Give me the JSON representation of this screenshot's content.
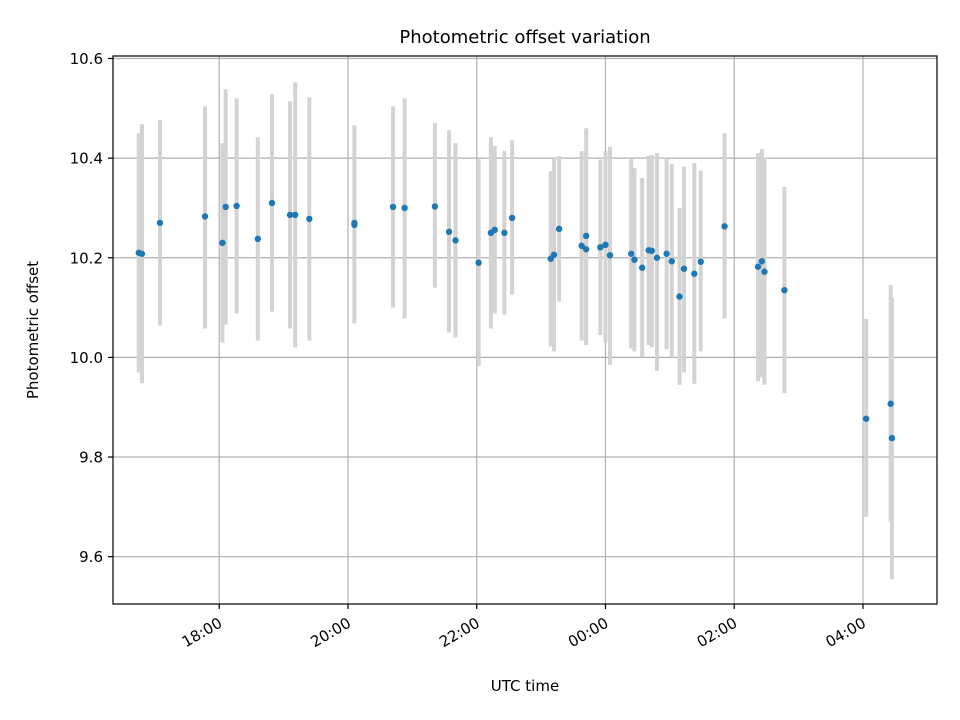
{
  "chart_data": {
    "type": "scatter",
    "title": "Photometric offset variation",
    "xlabel": "UTC time",
    "ylabel": "Photometric offset",
    "x_unit": "hours since 00:00 UTC (negative = previous day)",
    "xlim": [
      -7.65,
      5.15
    ],
    "ylim": [
      9.505,
      10.605
    ],
    "xticks": [
      {
        "value": -6,
        "label": "18:00"
      },
      {
        "value": -4,
        "label": "20:00"
      },
      {
        "value": -2,
        "label": "22:00"
      },
      {
        "value": 0,
        "label": "00:00"
      },
      {
        "value": 2,
        "label": "02:00"
      },
      {
        "value": 4,
        "label": "04:00"
      }
    ],
    "yticks": [
      {
        "value": 9.6,
        "label": "9.6"
      },
      {
        "value": 9.8,
        "label": "9.8"
      },
      {
        "value": 10.0,
        "label": "10.0"
      },
      {
        "value": 10.2,
        "label": "10.2"
      },
      {
        "value": 10.4,
        "label": "10.4"
      },
      {
        "value": 10.6,
        "label": "10.6"
      }
    ],
    "grid": true,
    "colors": {
      "marker": "#1f77b4",
      "errorbar": "#d3d3d3",
      "grid": "#b0b0b0"
    },
    "points": [
      {
        "x": -7.25,
        "y": 10.21,
        "ylow": 9.97,
        "yhigh": 10.45
      },
      {
        "x": -7.2,
        "y": 10.208,
        "ylow": 9.948,
        "yhigh": 10.468
      },
      {
        "x": -6.92,
        "y": 10.27,
        "ylow": 10.064,
        "yhigh": 10.476
      },
      {
        "x": -6.22,
        "y": 10.283,
        "ylow": 10.058,
        "yhigh": 10.504
      },
      {
        "x": -5.95,
        "y": 10.23,
        "ylow": 10.03,
        "yhigh": 10.43
      },
      {
        "x": -5.9,
        "y": 10.302,
        "ylow": 10.066,
        "yhigh": 10.538
      },
      {
        "x": -5.73,
        "y": 10.304,
        "ylow": 10.088,
        "yhigh": 10.52
      },
      {
        "x": -5.4,
        "y": 10.238,
        "ylow": 10.034,
        "yhigh": 10.442
      },
      {
        "x": -5.18,
        "y": 10.31,
        "ylow": 10.092,
        "yhigh": 10.528
      },
      {
        "x": -4.9,
        "y": 10.286,
        "ylow": 10.058,
        "yhigh": 10.514
      },
      {
        "x": -4.82,
        "y": 10.286,
        "ylow": 10.02,
        "yhigh": 10.552
      },
      {
        "x": -4.6,
        "y": 10.278,
        "ylow": 10.034,
        "yhigh": 10.522
      },
      {
        "x": -3.9,
        "y": 10.27,
        "ylow": 10.07,
        "yhigh": 10.466
      },
      {
        "x": -3.9,
        "y": 10.266,
        "ylow": 10.068,
        "yhigh": 10.464
      },
      {
        "x": -3.3,
        "y": 10.302,
        "ylow": 10.1,
        "yhigh": 10.504
      },
      {
        "x": -3.12,
        "y": 10.3,
        "ylow": 10.078,
        "yhigh": 10.52
      },
      {
        "x": -2.65,
        "y": 10.303,
        "ylow": 10.14,
        "yhigh": 10.47
      },
      {
        "x": -2.43,
        "y": 10.252,
        "ylow": 10.05,
        "yhigh": 10.456
      },
      {
        "x": -2.33,
        "y": 10.235,
        "ylow": 10.04,
        "yhigh": 10.43
      },
      {
        "x": -1.97,
        "y": 10.19,
        "ylow": 9.983,
        "yhigh": 10.398
      },
      {
        "x": -1.78,
        "y": 10.25,
        "ylow": 10.058,
        "yhigh": 10.442
      },
      {
        "x": -1.72,
        "y": 10.256,
        "ylow": 10.088,
        "yhigh": 10.424
      },
      {
        "x": -1.57,
        "y": 10.25,
        "ylow": 10.086,
        "yhigh": 10.414
      },
      {
        "x": -1.45,
        "y": 10.28,
        "ylow": 10.126,
        "yhigh": 10.436
      },
      {
        "x": -0.85,
        "y": 10.198,
        "ylow": 10.022,
        "yhigh": 10.374
      },
      {
        "x": -0.8,
        "y": 10.206,
        "ylow": 10.012,
        "yhigh": 10.4
      },
      {
        "x": -0.72,
        "y": 10.258,
        "ylow": 10.112,
        "yhigh": 10.404
      },
      {
        "x": -0.37,
        "y": 10.224,
        "ylow": 10.034,
        "yhigh": 10.414
      },
      {
        "x": -0.3,
        "y": 10.244,
        "ylow": 10.028,
        "yhigh": 10.46
      },
      {
        "x": -0.3,
        "y": 10.217,
        "ylow": 10.025,
        "yhigh": 10.409
      },
      {
        "x": -0.08,
        "y": 10.221,
        "ylow": 10.045,
        "yhigh": 10.397
      },
      {
        "x": 0.0,
        "y": 10.226,
        "ylow": 10.03,
        "yhigh": 10.414
      },
      {
        "x": 0.07,
        "y": 10.205,
        "ylow": 9.985,
        "yhigh": 10.423
      },
      {
        "x": 0.4,
        "y": 10.208,
        "ylow": 10.018,
        "yhigh": 10.398
      },
      {
        "x": 0.45,
        "y": 10.196,
        "ylow": 10.012,
        "yhigh": 10.38
      },
      {
        "x": 0.57,
        "y": 10.18,
        "ylow": 10.0,
        "yhigh": 10.36
      },
      {
        "x": 0.67,
        "y": 10.215,
        "ylow": 10.025,
        "yhigh": 10.405
      },
      {
        "x": 0.72,
        "y": 10.214,
        "ylow": 10.02,
        "yhigh": 10.406
      },
      {
        "x": 0.8,
        "y": 10.2,
        "ylow": 9.973,
        "yhigh": 10.41
      },
      {
        "x": 0.95,
        "y": 10.208,
        "ylow": 10.016,
        "yhigh": 10.4
      },
      {
        "x": 1.03,
        "y": 10.193,
        "ylow": 10.0,
        "yhigh": 10.388
      },
      {
        "x": 1.15,
        "y": 10.122,
        "ylow": 9.945,
        "yhigh": 10.3
      },
      {
        "x": 1.22,
        "y": 10.178,
        "ylow": 9.97,
        "yhigh": 10.383
      },
      {
        "x": 1.38,
        "y": 10.168,
        "ylow": 9.947,
        "yhigh": 10.39
      },
      {
        "x": 1.48,
        "y": 10.192,
        "ylow": 10.012,
        "yhigh": 10.375
      },
      {
        "x": 1.85,
        "y": 10.263,
        "ylow": 10.078,
        "yhigh": 10.45
      },
      {
        "x": 2.37,
        "y": 10.182,
        "ylow": 9.952,
        "yhigh": 10.41
      },
      {
        "x": 2.43,
        "y": 10.193,
        "ylow": 9.96,
        "yhigh": 10.418
      },
      {
        "x": 2.47,
        "y": 10.172,
        "ylow": 9.945,
        "yhigh": 10.402
      },
      {
        "x": 2.78,
        "y": 10.135,
        "ylow": 9.928,
        "yhigh": 10.342
      },
      {
        "x": 4.05,
        "y": 9.877,
        "ylow": 9.68,
        "yhigh": 10.077
      },
      {
        "x": 4.43,
        "y": 9.907,
        "ylow": 9.67,
        "yhigh": 10.145
      },
      {
        "x": 4.45,
        "y": 9.838,
        "ylow": 9.555,
        "yhigh": 10.12
      }
    ]
  }
}
